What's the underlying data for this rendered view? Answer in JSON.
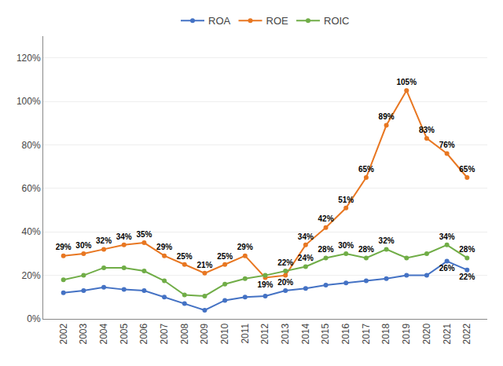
{
  "chart_data": {
    "type": "line",
    "x": [
      2002,
      2003,
      2004,
      2005,
      2006,
      2007,
      2008,
      2009,
      2010,
      2011,
      2012,
      2013,
      2014,
      2015,
      2016,
      2017,
      2018,
      2019,
      2020,
      2021,
      2022
    ],
    "xlim": [
      2001,
      2023
    ],
    "xticks": [
      2002,
      2003,
      2004,
      2005,
      2006,
      2007,
      2008,
      2009,
      2010,
      2011,
      2012,
      2013,
      2014,
      2015,
      2016,
      2017,
      2018,
      2019,
      2020,
      2021,
      2022
    ],
    "ylim": [
      0,
      1.3
    ],
    "yticks": [
      {
        "value": 0,
        "label": "0%"
      },
      {
        "value": 0.2,
        "label": "20%"
      },
      {
        "value": 0.4,
        "label": "40%"
      },
      {
        "value": 0.6,
        "label": "60%"
      },
      {
        "value": 0.8,
        "label": "80%"
      },
      {
        "value": 1.0,
        "label": "100%"
      },
      {
        "value": 1.2,
        "label": "120%"
      }
    ],
    "grid": true,
    "legend": "upper center",
    "data_labels": true,
    "series": [
      {
        "name": "ROA",
        "color": "#4472C4",
        "marker": "circle",
        "values": [
          0.12,
          0.13,
          0.145,
          0.135,
          0.13,
          0.1,
          0.07,
          0.04,
          0.085,
          0.1,
          0.105,
          0.13,
          0.14,
          0.155,
          0.165,
          0.175,
          0.185,
          0.2,
          0.2,
          0.265,
          0.225
        ],
        "value_labels": [
          null,
          null,
          null,
          null,
          null,
          null,
          null,
          null,
          null,
          null,
          null,
          null,
          null,
          null,
          null,
          null,
          null,
          null,
          null,
          "26%",
          "22%"
        ]
      },
      {
        "name": "ROE",
        "color": "#E87722",
        "marker": "circle",
        "values": [
          0.29,
          0.3,
          0.32,
          0.34,
          0.35,
          0.29,
          0.25,
          0.21,
          0.25,
          0.29,
          0.19,
          0.2,
          0.34,
          0.42,
          0.51,
          0.65,
          0.89,
          1.05,
          0.83,
          0.76,
          0.65
        ],
        "value_labels": [
          "29%",
          "30%",
          "32%",
          "34%",
          "35%",
          "29%",
          "25%",
          "21%",
          "25%",
          "29%",
          "19%",
          "20%",
          "34%",
          "42%",
          "51%",
          "65%",
          "89%",
          "105%",
          "83%",
          "76%",
          "65%"
        ]
      },
      {
        "name": "ROIC",
        "color": "#70AD47",
        "marker": "circle",
        "values": [
          0.18,
          0.2,
          0.235,
          0.235,
          0.22,
          0.175,
          0.11,
          0.105,
          0.16,
          0.185,
          0.2,
          0.22,
          0.24,
          0.28,
          0.3,
          0.28,
          0.32,
          0.28,
          0.3,
          0.34,
          0.28
        ],
        "value_labels": [
          null,
          null,
          null,
          null,
          null,
          null,
          null,
          null,
          null,
          null,
          null,
          "22%",
          "24%",
          "28%",
          "30%",
          "28%",
          "32%",
          null,
          null,
          "34%",
          "28%"
        ]
      }
    ]
  }
}
